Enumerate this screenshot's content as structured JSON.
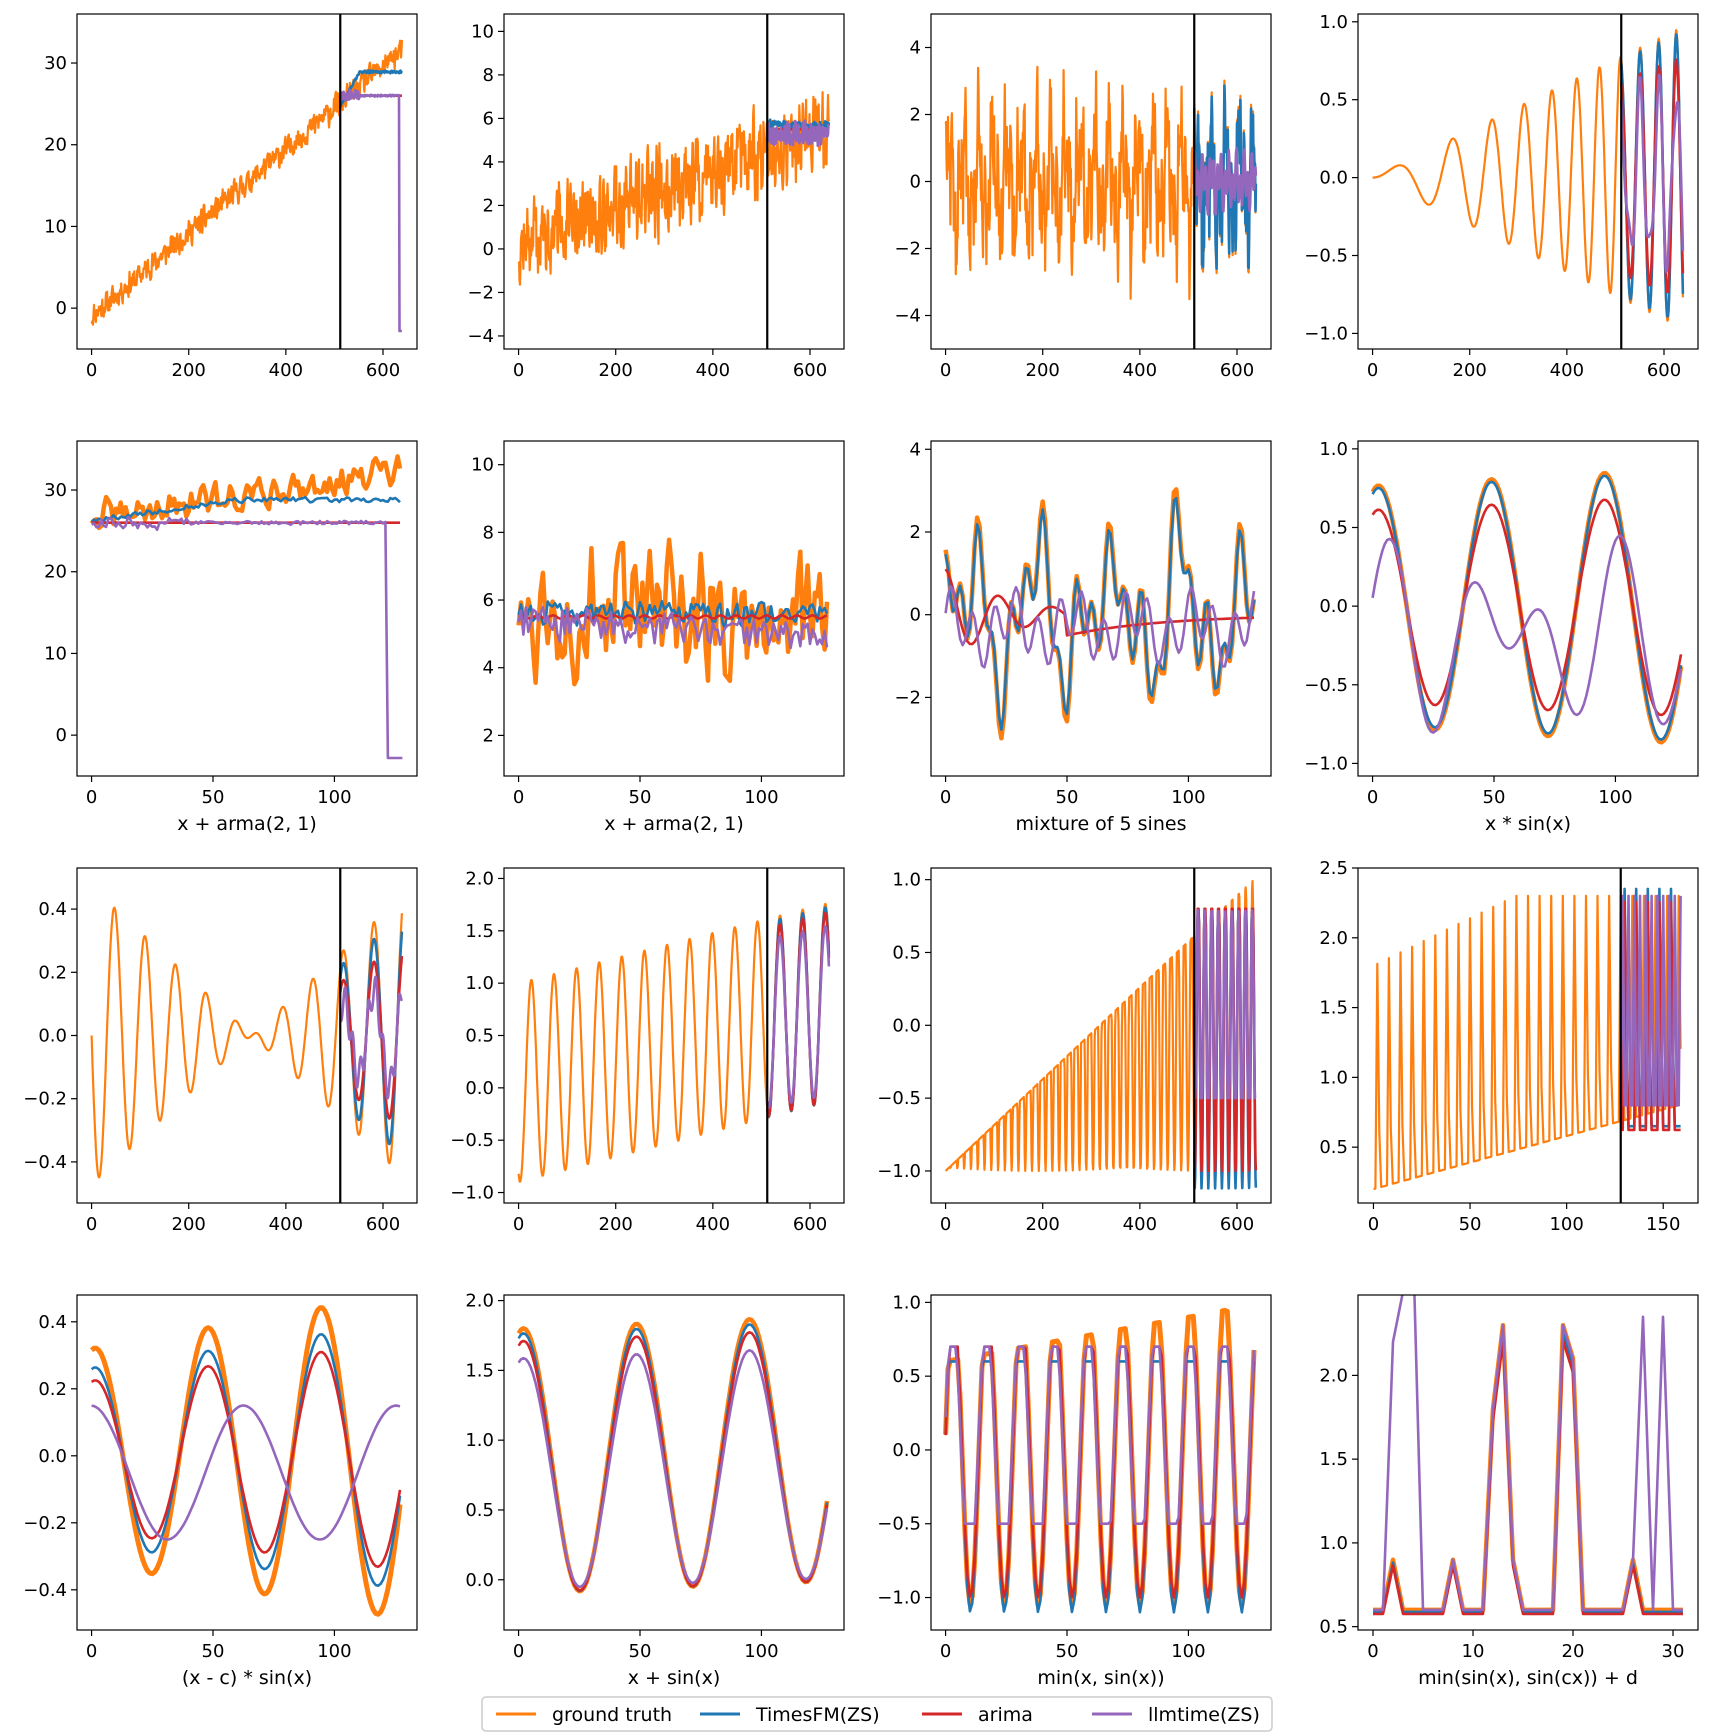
{
  "colors": {
    "ground_truth": "#ff7f0e",
    "timesfm": "#1f77b4",
    "arima": "#d62728",
    "llmtime": "#9467bd",
    "cutoff": "#000000"
  },
  "legend": [
    {
      "label": "ground truth",
      "color": "#ff7f0e"
    },
    {
      "label": "TimesFM(ZS)",
      "color": "#1f77b4"
    },
    {
      "label": "arima",
      "color": "#d62728"
    },
    {
      "label": "llmtime(ZS)",
      "color": "#9467bd"
    }
  ],
  "chart_data": [
    {
      "type": "line",
      "panel": "full",
      "xlabel": "",
      "xlim": [
        -30,
        670
      ],
      "ylim": [
        -5,
        36
      ],
      "xticks": [
        0,
        200,
        400,
        600
      ],
      "yticks": [
        0,
        10,
        20,
        30
      ],
      "cutoff": 512,
      "fn": "lin_arma",
      "amp": 1.2,
      "slope": 0.051,
      "off": -1,
      "pred": {
        "tfm": 28.9,
        "arima": 26.0,
        "llm_drop": -2.8
      }
    },
    {
      "type": "line",
      "panel": "full",
      "xlabel": "",
      "xlim": [
        -30,
        670
      ],
      "ylim": [
        -4.6,
        10.8
      ],
      "xticks": [
        0,
        200,
        400,
        600
      ],
      "yticks": [
        -4,
        -2,
        0,
        2,
        4,
        6,
        8,
        10
      ],
      "cutoff": 512,
      "fn": "lin_arma",
      "amp": 1.5,
      "slope": 0.0085,
      "off": 0.2,
      "pred": {
        "tfm": 5.7,
        "arima": 5.5,
        "llm": 5.3
      }
    },
    {
      "type": "line",
      "panel": "full",
      "xlabel": "",
      "xlim": [
        -30,
        670
      ],
      "ylim": [
        -5,
        5
      ],
      "xticks": [
        0,
        200,
        400,
        600
      ],
      "yticks": [
        -4,
        -2,
        0,
        2,
        4
      ],
      "cutoff": 512,
      "fn": "sines"
    },
    {
      "type": "line",
      "panel": "full",
      "xlabel": "",
      "xlim": [
        -30,
        670
      ],
      "ylim": [
        -1.1,
        1.05
      ],
      "xticks": [
        0,
        200,
        400,
        600
      ],
      "yticks": [
        -1.0,
        -0.5,
        0.0,
        0.5,
        1.0
      ],
      "cutoff": 512,
      "fn": "xsinx"
    },
    {
      "type": "line",
      "panel": "zoom",
      "xlabel": "x + arma(2, 1)",
      "xlim": [
        -6,
        134
      ],
      "ylim": [
        -5,
        36
      ],
      "xticks": [
        0,
        50,
        100
      ],
      "yticks": [
        0,
        10,
        20,
        30
      ],
      "fn": "lin_arma_z",
      "base": 26.5,
      "slope": 0.045,
      "amp": 1.6
    },
    {
      "type": "line",
      "panel": "zoom",
      "xlabel": "x + arma(2, 1)",
      "xlim": [
        -6,
        134
      ],
      "ylim": [
        0.8,
        10.7
      ],
      "xticks": [
        0,
        50,
        100
      ],
      "yticks": [
        2,
        4,
        6,
        8,
        10
      ],
      "fn": "arma_z",
      "base": 5.6,
      "amp": 1.6
    },
    {
      "type": "line",
      "panel": "zoom",
      "xlabel": "mixture of 5 sines",
      "xlim": [
        -6,
        134
      ],
      "ylim": [
        -3.9,
        4.2
      ],
      "xticks": [
        0,
        50,
        100
      ],
      "yticks": [
        -2,
        0,
        2,
        4
      ],
      "fn": "sines_z"
    },
    {
      "type": "line",
      "panel": "zoom",
      "xlabel": "x * sin(x)",
      "xlim": [
        -6,
        134
      ],
      "ylim": [
        -1.08,
        1.05
      ],
      "xticks": [
        0,
        50,
        100
      ],
      "yticks": [
        -1.0,
        -0.5,
        0.0,
        0.5,
        1.0
      ],
      "fn": "xsinx_z"
    },
    {
      "type": "line",
      "panel": "full",
      "xlabel": "",
      "xlim": [
        -30,
        670
      ],
      "ylim": [
        -0.53,
        0.53
      ],
      "xticks": [
        0,
        200,
        400,
        600
      ],
      "yticks": [
        -0.4,
        -0.2,
        0.0,
        0.2,
        0.4
      ],
      "cutoff": 512,
      "fn": "xcsinx"
    },
    {
      "type": "line",
      "panel": "full",
      "xlabel": "",
      "xlim": [
        -30,
        670
      ],
      "ylim": [
        -1.1,
        2.1
      ],
      "xticks": [
        0,
        200,
        400,
        600
      ],
      "yticks": [
        -1.0,
        -0.5,
        0.0,
        0.5,
        1.0,
        1.5,
        2.0
      ],
      "cutoff": 512,
      "fn": "xplussin"
    },
    {
      "type": "line",
      "panel": "full",
      "xlabel": "",
      "xlim": [
        -30,
        670
      ],
      "ylim": [
        -1.22,
        1.08
      ],
      "xticks": [
        0,
        200,
        400,
        600
      ],
      "yticks": [
        -1.0,
        -0.5,
        0.0,
        0.5,
        1.0
      ],
      "cutoff": 512,
      "fn": "minxsin"
    },
    {
      "type": "line",
      "panel": "full",
      "xlabel": "",
      "xlim": [
        -8,
        168
      ],
      "ylim": [
        0.1,
        2.5
      ],
      "xticks": [
        0,
        50,
        100,
        150
      ],
      "yticks": [
        0.5,
        1.0,
        1.5,
        2.0,
        2.5
      ],
      "cutoff": 128,
      "fn": "minsinsin"
    },
    {
      "type": "line",
      "panel": "zoom",
      "xlabel": "(x - c) * sin(x)",
      "xlim": [
        -6,
        134
      ],
      "ylim": [
        -0.52,
        0.48
      ],
      "xticks": [
        0,
        50,
        100
      ],
      "yticks": [
        -0.4,
        -0.2,
        0.0,
        0.2,
        0.4
      ],
      "fn": "xcsinx_z"
    },
    {
      "type": "line",
      "panel": "zoom",
      "xlabel": "x + sin(x)",
      "xlim": [
        -6,
        134
      ],
      "ylim": [
        -0.36,
        2.04
      ],
      "xticks": [
        0,
        50,
        100
      ],
      "yticks": [
        0.0,
        0.5,
        1.0,
        1.5,
        2.0
      ],
      "fn": "xplussin_z"
    },
    {
      "type": "line",
      "panel": "zoom",
      "xlabel": "min(x, sin(x))",
      "xlim": [
        -6,
        134
      ],
      "ylim": [
        -1.22,
        1.05
      ],
      "xticks": [
        0,
        50,
        100
      ],
      "yticks": [
        -1.0,
        -0.5,
        0.0,
        0.5,
        1.0
      ],
      "fn": "minxsin_z"
    },
    {
      "type": "line",
      "panel": "zoom",
      "xlabel": "min(sin(x), sin(cx)) + d",
      "xlim": [
        -1.5,
        32.5
      ],
      "ylim": [
        0.48,
        2.48
      ],
      "xticks": [
        0,
        10,
        20,
        30
      ],
      "yticks": [
        0.5,
        1.0,
        1.5,
        2.0
      ],
      "fn": "minsinsin_z"
    }
  ]
}
